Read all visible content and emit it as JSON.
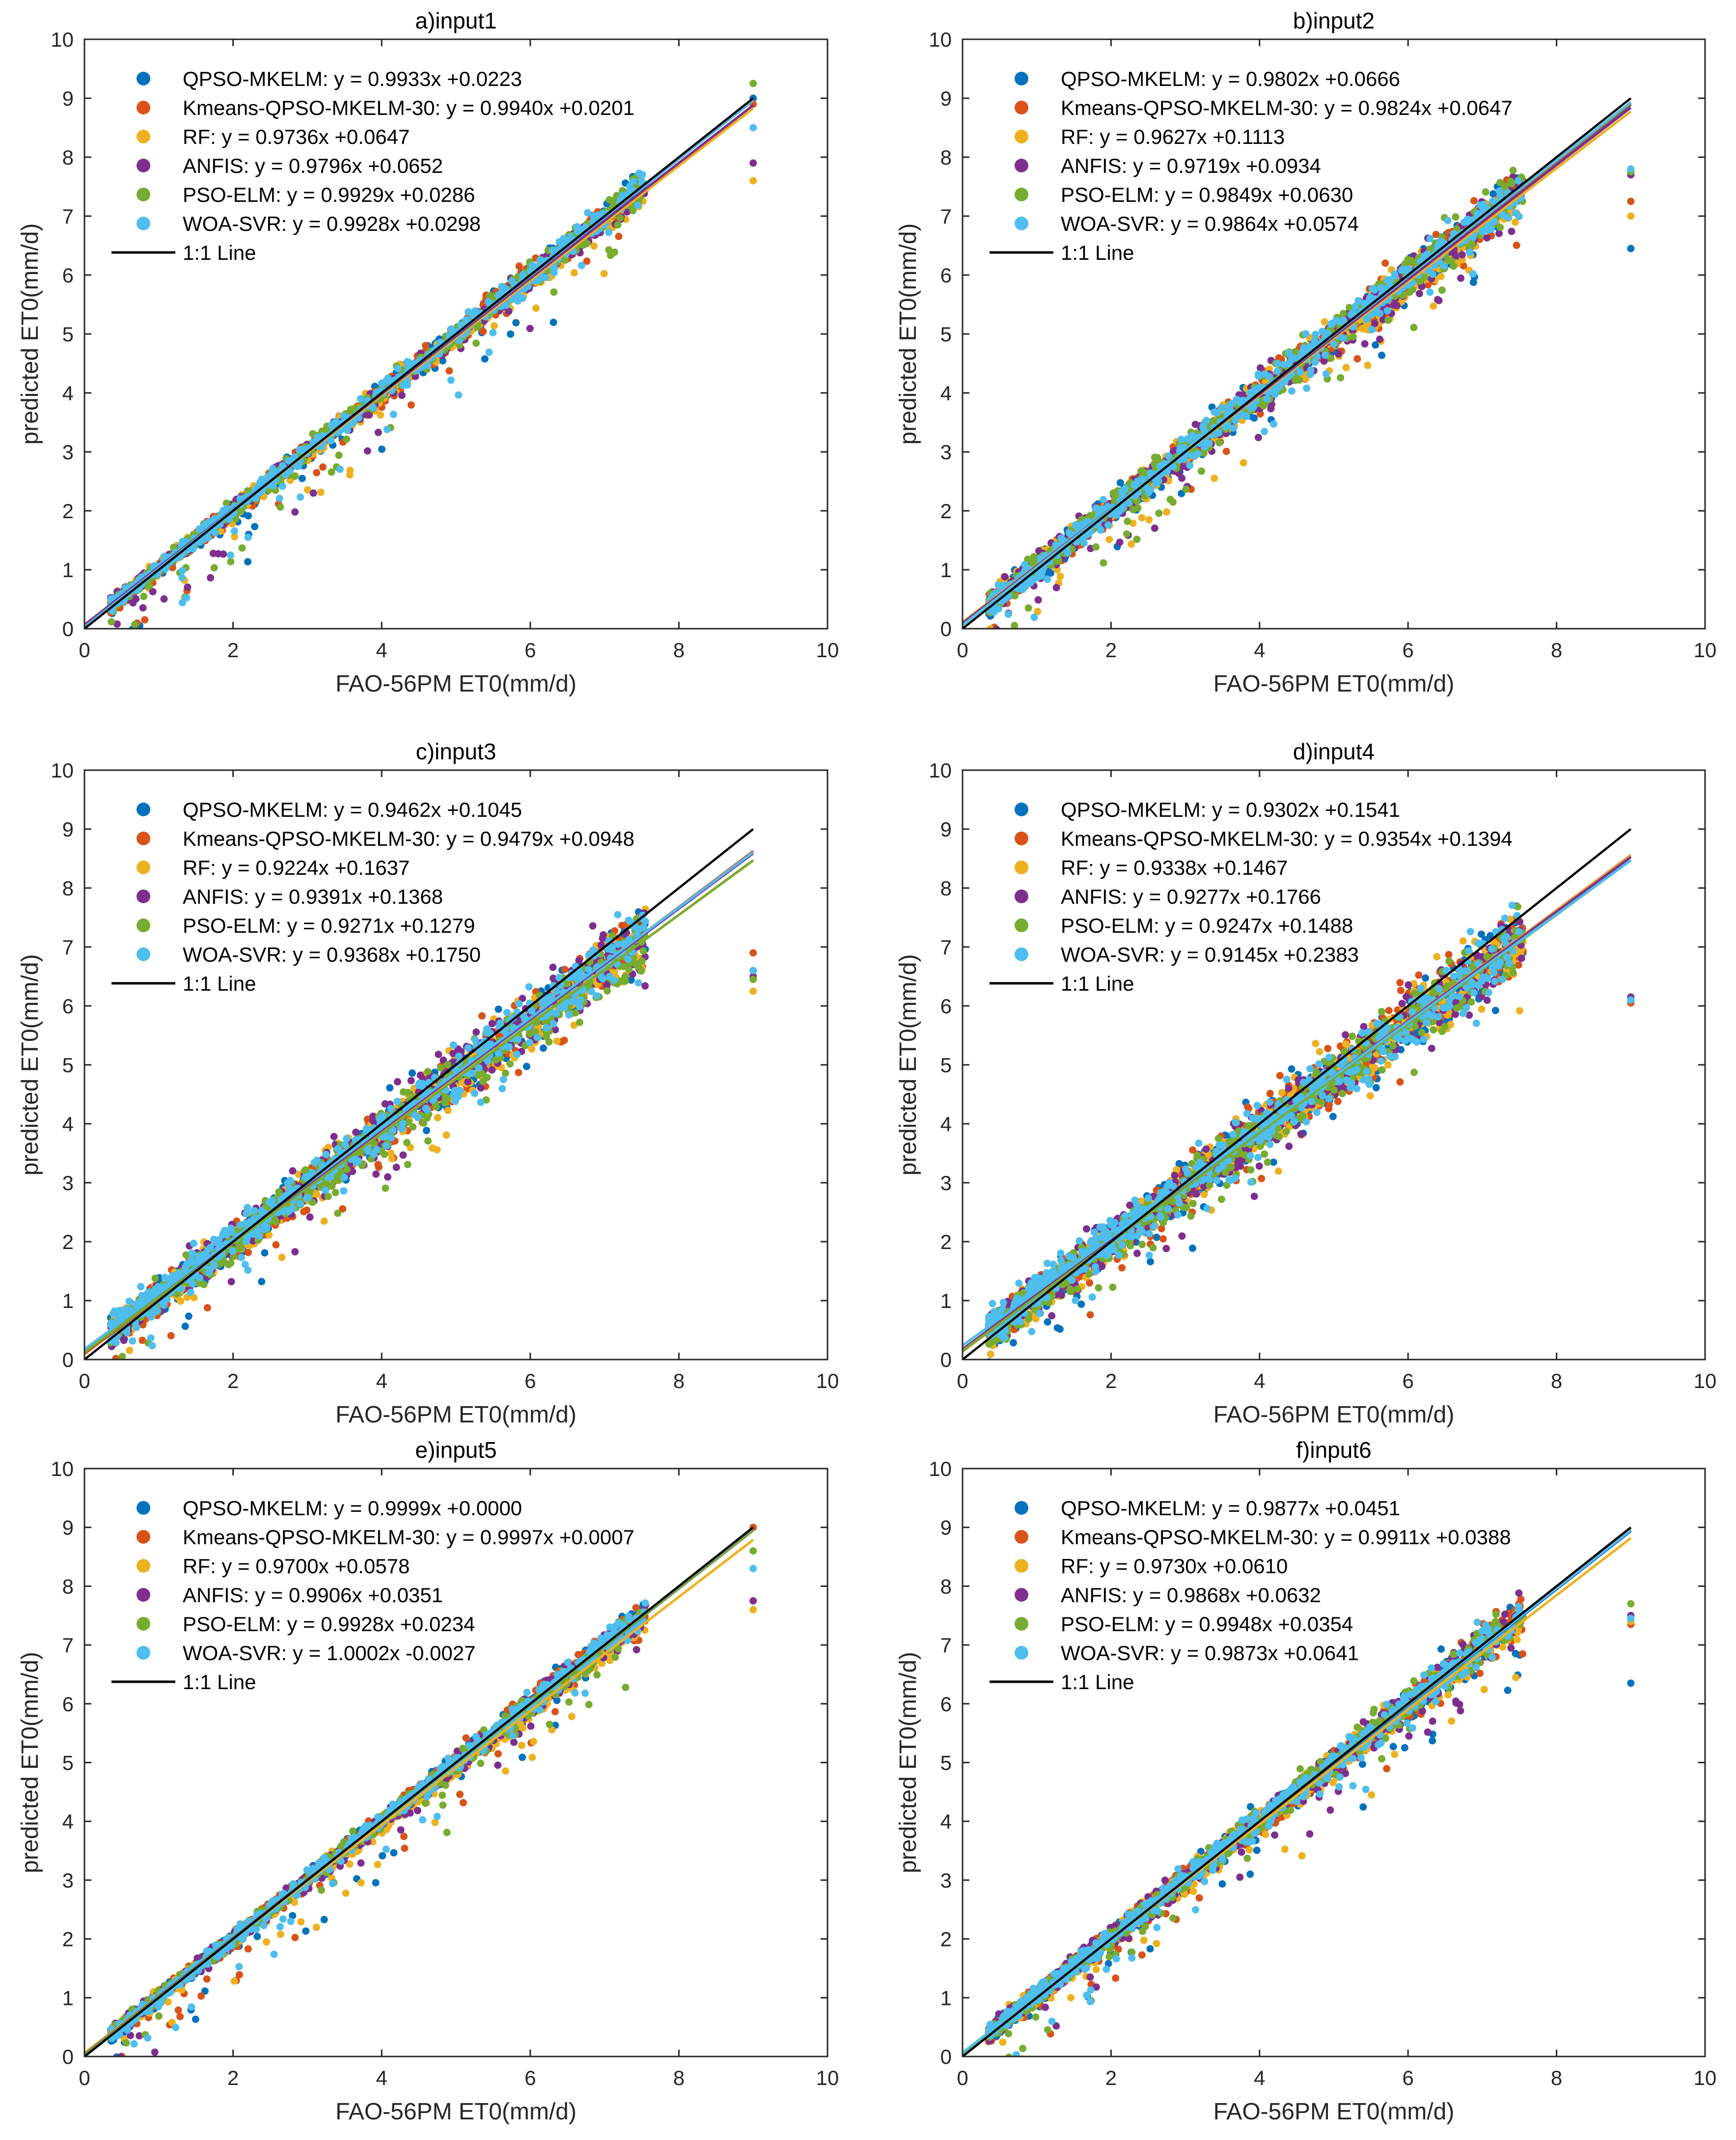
{
  "chart_data": [
    {
      "type": "scatter",
      "title": "a)input1",
      "xlabel": "FAO-56PM ET0(mm/d)",
      "ylabel": "predicted ET0(mm/d)",
      "xlim": [
        0,
        10
      ],
      "ylim": [
        0,
        10
      ],
      "xticks": [
        "0",
        "2",
        "4",
        "6",
        "8",
        "10"
      ],
      "yticks": [
        "0",
        "1",
        "2",
        "3",
        "4",
        "5",
        "6",
        "7",
        "8",
        "9",
        "10"
      ],
      "legend_position": "top-left",
      "one_to_one_label": "1:1 Line",
      "series": [
        {
          "name": "QPSO-MKELM",
          "color": "#0072BD",
          "slope": 0.9933,
          "intercept": 0.0223,
          "label": "QPSO-MKELM: y = 0.9933x +0.0223"
        },
        {
          "name": "Kmeans-QPSO-MKELM-30",
          "color": "#D95319",
          "slope": 0.994,
          "intercept": 0.0201,
          "label": "Kmeans-QPSO-MKELM-30: y = 0.9940x +0.0201"
        },
        {
          "name": "RF",
          "color": "#EDB120",
          "slope": 0.9736,
          "intercept": 0.0647,
          "label": "RF: y = 0.9736x +0.0647"
        },
        {
          "name": "ANFIS",
          "color": "#7E2F8E",
          "slope": 0.9796,
          "intercept": 0.0652,
          "label": "ANFIS: y = 0.9796x +0.0652"
        },
        {
          "name": "PSO-ELM",
          "color": "#77AC30",
          "slope": 0.9929,
          "intercept": 0.0286,
          "label": "PSO-ELM: y = 0.9929x +0.0286"
        },
        {
          "name": "WOA-SVR",
          "color": "#4DBEEE",
          "slope": 0.9928,
          "intercept": 0.0298,
          "label": "WOA-SVR: y = 0.9928x +0.0298"
        }
      ],
      "outliers_at_x9": [
        9.0,
        8.9,
        7.6,
        7.9,
        9.25,
        8.5
      ]
    },
    {
      "type": "scatter",
      "title": "b)input2",
      "xlabel": "FAO-56PM ET0(mm/d)",
      "ylabel": "predicted ET0(mm/d)",
      "xlim": [
        0,
        10
      ],
      "ylim": [
        0,
        10
      ],
      "xticks": [
        "0",
        "2",
        "4",
        "6",
        "8",
        "10"
      ],
      "yticks": [
        "0",
        "1",
        "2",
        "3",
        "4",
        "5",
        "6",
        "7",
        "8",
        "9",
        "10"
      ],
      "legend_position": "top-left",
      "one_to_one_label": "1:1 Line",
      "series": [
        {
          "name": "QPSO-MKELM",
          "color": "#0072BD",
          "slope": 0.9802,
          "intercept": 0.0666,
          "label": "QPSO-MKELM: y = 0.9802x +0.0666"
        },
        {
          "name": "Kmeans-QPSO-MKELM-30",
          "color": "#D95319",
          "slope": 0.9824,
          "intercept": 0.0647,
          "label": "Kmeans-QPSO-MKELM-30: y = 0.9824x +0.0647"
        },
        {
          "name": "RF",
          "color": "#EDB120",
          "slope": 0.9627,
          "intercept": 0.1113,
          "label": "RF: y = 0.9627x +0.1113"
        },
        {
          "name": "ANFIS",
          "color": "#7E2F8E",
          "slope": 0.9719,
          "intercept": 0.0934,
          "label": "ANFIS: y = 0.9719x +0.0934"
        },
        {
          "name": "PSO-ELM",
          "color": "#77AC30",
          "slope": 0.9849,
          "intercept": 0.063,
          "label": "PSO-ELM: y = 0.9849x +0.0630"
        },
        {
          "name": "WOA-SVR",
          "color": "#4DBEEE",
          "slope": 0.9864,
          "intercept": 0.0574,
          "label": "WOA-SVR: y = 0.9864x +0.0574"
        }
      ],
      "outliers_at_x9": [
        6.45,
        7.25,
        7.0,
        7.7,
        7.75,
        7.8
      ]
    },
    {
      "type": "scatter",
      "title": "c)input3",
      "xlabel": "FAO-56PM ET0(mm/d)",
      "ylabel": "predicted ET0(mm/d)",
      "xlim": [
        0,
        10
      ],
      "ylim": [
        0,
        10
      ],
      "xticks": [
        "0",
        "2",
        "4",
        "6",
        "8",
        "10"
      ],
      "yticks": [
        "0",
        "1",
        "2",
        "3",
        "4",
        "5",
        "6",
        "7",
        "8",
        "9",
        "10"
      ],
      "legend_position": "top-left",
      "one_to_one_label": "1:1 Line",
      "series": [
        {
          "name": "QPSO-MKELM",
          "color": "#0072BD",
          "slope": 0.9462,
          "intercept": 0.1045,
          "label": "QPSO-MKELM: y = 0.9462x +0.1045"
        },
        {
          "name": "Kmeans-QPSO-MKELM-30",
          "color": "#D95319",
          "slope": 0.9479,
          "intercept": 0.0948,
          "label": "Kmeans-QPSO-MKELM-30: y = 0.9479x +0.0948"
        },
        {
          "name": "RF",
          "color": "#EDB120",
          "slope": 0.9224,
          "intercept": 0.1637,
          "label": "RF: y = 0.9224x +0.1637"
        },
        {
          "name": "ANFIS",
          "color": "#7E2F8E",
          "slope": 0.9391,
          "intercept": 0.1368,
          "label": "ANFIS: y = 0.9391x +0.1368"
        },
        {
          "name": "PSO-ELM",
          "color": "#77AC30",
          "slope": 0.9271,
          "intercept": 0.1279,
          "label": "PSO-ELM: y = 0.9271x +0.1279"
        },
        {
          "name": "WOA-SVR",
          "color": "#4DBEEE",
          "slope": 0.9368,
          "intercept": 0.175,
          "label": "WOA-SVR: y = 0.9368x +0.1750"
        }
      ],
      "outliers_at_x9": [
        6.6,
        6.9,
        6.25,
        6.5,
        6.45,
        6.6
      ]
    },
    {
      "type": "scatter",
      "title": "d)input4",
      "xlabel": "FAO-56PM ET0(mm/d)",
      "ylabel": "predicted ET0(mm/d)",
      "xlim": [
        0,
        10
      ],
      "ylim": [
        0,
        10
      ],
      "xticks": [
        "0",
        "2",
        "4",
        "6",
        "8",
        "10"
      ],
      "yticks": [
        "0",
        "1",
        "2",
        "3",
        "4",
        "5",
        "6",
        "7",
        "8",
        "9",
        "10"
      ],
      "legend_position": "top-left",
      "one_to_one_label": "1:1 Line",
      "series": [
        {
          "name": "QPSO-MKELM",
          "color": "#0072BD",
          "slope": 0.9302,
          "intercept": 0.1541,
          "label": "QPSO-MKELM: y = 0.9302x +0.1541"
        },
        {
          "name": "Kmeans-QPSO-MKELM-30",
          "color": "#D95319",
          "slope": 0.9354,
          "intercept": 0.1394,
          "label": "Kmeans-QPSO-MKELM-30: y = 0.9354x +0.1394"
        },
        {
          "name": "RF",
          "color": "#EDB120",
          "slope": 0.9338,
          "intercept": 0.1467,
          "label": "RF: y = 0.9338x +0.1467"
        },
        {
          "name": "ANFIS",
          "color": "#7E2F8E",
          "slope": 0.9277,
          "intercept": 0.1766,
          "label": "ANFIS: y = 0.9277x +0.1766"
        },
        {
          "name": "PSO-ELM",
          "color": "#77AC30",
          "slope": 0.9247,
          "intercept": 0.1488,
          "label": "PSO-ELM: y = 0.9247x +0.1488"
        },
        {
          "name": "WOA-SVR",
          "color": "#4DBEEE",
          "slope": 0.9145,
          "intercept": 0.2383,
          "label": "WOA-SVR: y = 0.9145x +0.2383"
        }
      ],
      "outliers_at_x9": [
        6.15,
        6.05,
        6.1,
        6.15,
        6.1,
        6.1
      ]
    },
    {
      "type": "scatter",
      "title": "e)input5",
      "xlabel": "FAO-56PM ET0(mm/d)",
      "ylabel": "predicted ET0(mm/d)",
      "xlim": [
        0,
        10
      ],
      "ylim": [
        0,
        10
      ],
      "xticks": [
        "0",
        "2",
        "4",
        "6",
        "8",
        "10"
      ],
      "yticks": [
        "0",
        "1",
        "2",
        "3",
        "4",
        "5",
        "6",
        "7",
        "8",
        "9",
        "10"
      ],
      "legend_position": "top-left",
      "one_to_one_label": "1:1 Line",
      "series": [
        {
          "name": "QPSO-MKELM",
          "color": "#0072BD",
          "slope": 0.9999,
          "intercept": 0.0,
          "label": "QPSO-MKELM: y = 0.9999x +0.0000"
        },
        {
          "name": "Kmeans-QPSO-MKELM-30",
          "color": "#D95319",
          "slope": 0.9997,
          "intercept": 0.0007,
          "label": "Kmeans-QPSO-MKELM-30: y = 0.9997x +0.0007"
        },
        {
          "name": "RF",
          "color": "#EDB120",
          "slope": 0.97,
          "intercept": 0.0578,
          "label": "RF: y = 0.9700x +0.0578"
        },
        {
          "name": "ANFIS",
          "color": "#7E2F8E",
          "slope": 0.9906,
          "intercept": 0.0351,
          "label": "ANFIS: y = 0.9906x +0.0351"
        },
        {
          "name": "PSO-ELM",
          "color": "#77AC30",
          "slope": 0.9928,
          "intercept": 0.0234,
          "label": "PSO-ELM: y = 0.9928x +0.0234"
        },
        {
          "name": "WOA-SVR",
          "color": "#4DBEEE",
          "slope": 1.0002,
          "intercept": -0.0027,
          "label": "WOA-SVR: y = 1.0002x -0.0027"
        }
      ],
      "outliers_at_x9": [
        9.0,
        9.0,
        7.6,
        7.75,
        8.6,
        8.3
      ]
    },
    {
      "type": "scatter",
      "title": "f)input6",
      "xlabel": "FAO-56PM ET0(mm/d)",
      "ylabel": "predicted ET0(mm/d)",
      "xlim": [
        0,
        10
      ],
      "ylim": [
        0,
        10
      ],
      "xticks": [
        "0",
        "2",
        "4",
        "6",
        "8",
        "10"
      ],
      "yticks": [
        "0",
        "1",
        "2",
        "3",
        "4",
        "5",
        "6",
        "7",
        "8",
        "9",
        "10"
      ],
      "legend_position": "top-left",
      "one_to_one_label": "1:1 Line",
      "series": [
        {
          "name": "QPSO-MKELM",
          "color": "#0072BD",
          "slope": 0.9877,
          "intercept": 0.0451,
          "label": "QPSO-MKELM: y = 0.9877x +0.0451"
        },
        {
          "name": "Kmeans-QPSO-MKELM-30",
          "color": "#D95319",
          "slope": 0.9911,
          "intercept": 0.0388,
          "label": "Kmeans-QPSO-MKELM-30: y = 0.9911x +0.0388"
        },
        {
          "name": "RF",
          "color": "#EDB120",
          "slope": 0.973,
          "intercept": 0.061,
          "label": "RF: y = 0.9730x +0.0610"
        },
        {
          "name": "ANFIS",
          "color": "#7E2F8E",
          "slope": 0.9868,
          "intercept": 0.0632,
          "label": "ANFIS: y = 0.9868x +0.0632"
        },
        {
          "name": "PSO-ELM",
          "color": "#77AC30",
          "slope": 0.9948,
          "intercept": 0.0354,
          "label": "PSO-ELM: y = 0.9948x +0.0354"
        },
        {
          "name": "WOA-SVR",
          "color": "#4DBEEE",
          "slope": 0.9873,
          "intercept": 0.0641,
          "label": "WOA-SVR: y = 0.9873x +0.0641"
        }
      ],
      "outliers_at_x9": [
        6.35,
        7.35,
        7.4,
        7.5,
        7.7,
        7.45
      ]
    }
  ]
}
